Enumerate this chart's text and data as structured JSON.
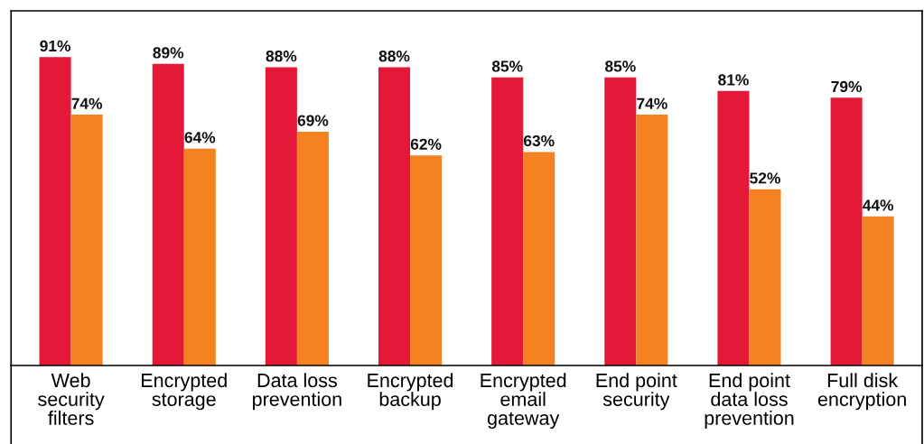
{
  "chart_data": {
    "type": "bar",
    "categories": [
      "Web\nsecurity\nfilters",
      "Encrypted\nstorage",
      "Data loss\nprevention",
      "Encrypted\nbackup",
      "Encrypted\nemail\ngateway",
      "End point\nsecurity",
      "End point\ndata loss\nprevention",
      "Full disk\nencryption"
    ],
    "series": [
      {
        "color": "#e31937",
        "values": [
          91,
          89,
          88,
          88,
          85,
          85,
          81,
          79
        ],
        "value_labels": [
          "91%",
          "89%",
          "88%",
          "88%",
          "85%",
          "85%",
          "81%",
          "79%"
        ]
      },
      {
        "color": "#f58220",
        "values": [
          74,
          64,
          69,
          62,
          63,
          74,
          52,
          44
        ],
        "value_labels": [
          "74%",
          "64%",
          "69%",
          "62%",
          "63%",
          "74%",
          "52%",
          "44%"
        ]
      }
    ],
    "grid": false
  }
}
